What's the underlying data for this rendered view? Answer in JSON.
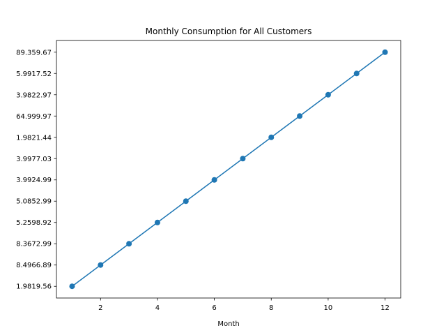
{
  "chart_data": {
    "type": "line",
    "title": "Monthly Consumption for All Customers",
    "xlabel": "Month",
    "ylabel": "",
    "x": [
      1,
      2,
      3,
      4,
      5,
      6,
      7,
      8,
      9,
      10,
      11,
      12
    ],
    "y_tick_labels": [
      "1.9819.56",
      "8.4966.89",
      "8.3672.99",
      "5.2598.92",
      "5.0852.99",
      "3.9924.99",
      "3.9977.03",
      "1.9821.44",
      "64.999.97",
      "3.9822.97",
      "5.9917.52",
      "89.359.67"
    ],
    "series": [
      {
        "values": [
          "1.9819.56",
          "8.4966.89",
          "8.3672.99",
          "5.2598.92",
          "5.0852.99",
          "3.9924.99",
          "3.9977.03",
          "1.9821.44",
          "64.999.97",
          "3.9822.97",
          "5.9917.52",
          "89.359.67"
        ],
        "color": "#1f77b4",
        "marker": "circle"
      }
    ],
    "x_ticks": [
      2,
      4,
      6,
      8,
      10,
      12
    ],
    "xlim": [
      0.45,
      12.55
    ],
    "grid": false,
    "legend": "none"
  }
}
